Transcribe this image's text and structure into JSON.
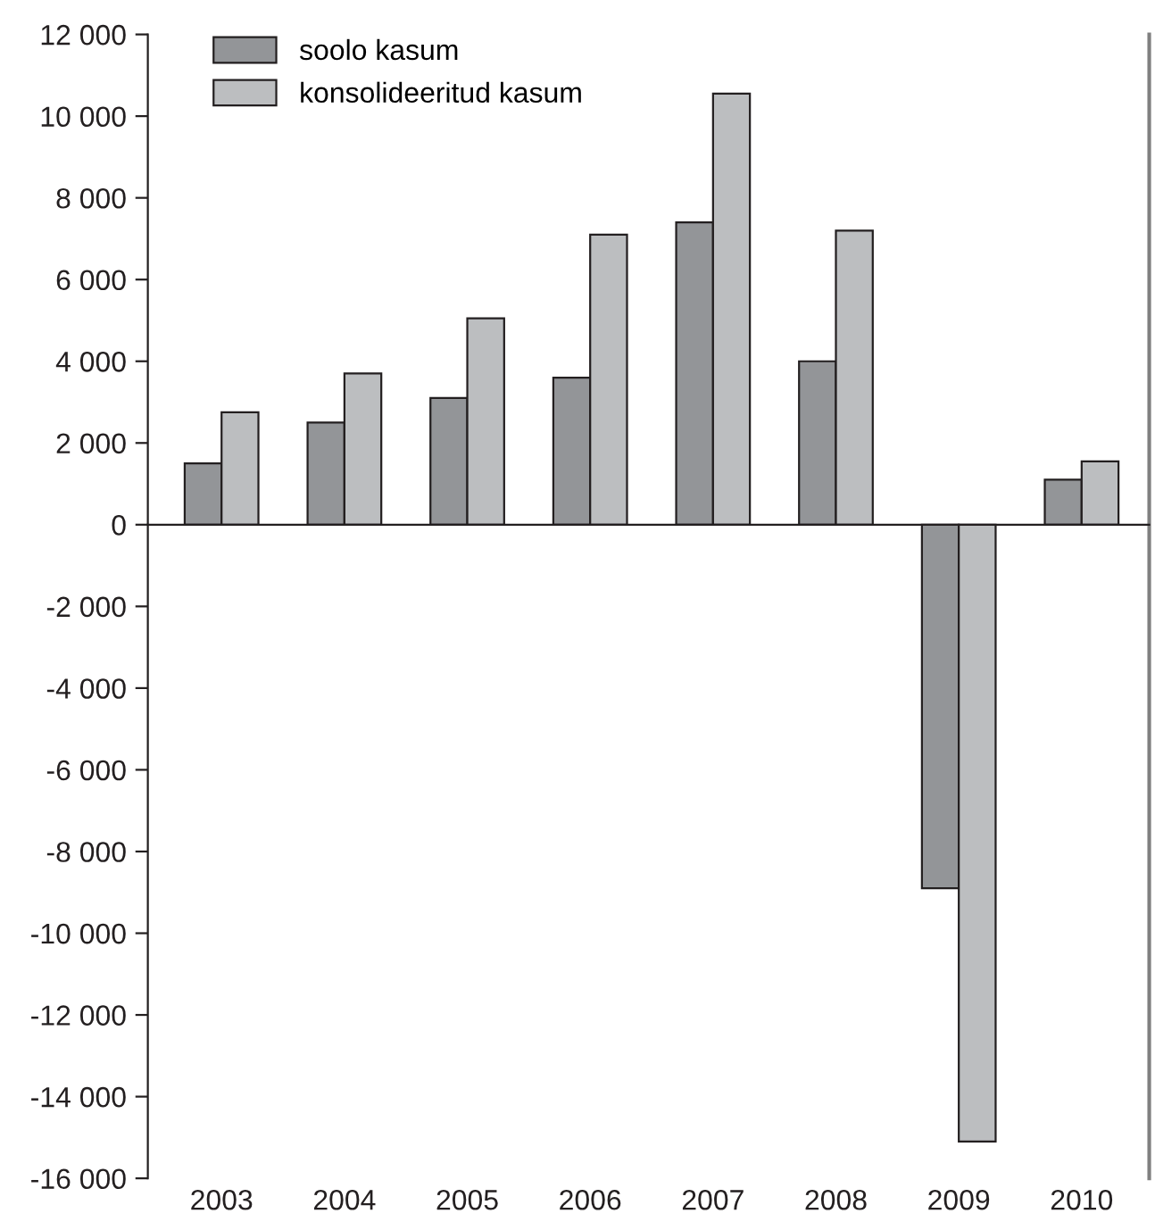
{
  "chart_data": {
    "type": "bar",
    "categories": [
      "2003",
      "2004",
      "2005",
      "2006",
      "2007",
      "2008",
      "2009",
      "2010"
    ],
    "series": [
      {
        "name": "soolo kasum",
        "color": "#939598",
        "values": [
          1500,
          2500,
          3100,
          3600,
          7400,
          4000,
          -8900,
          1100
        ]
      },
      {
        "name": "konsolideeritud kasum",
        "color": "#bcbec0",
        "values": [
          2750,
          3700,
          5050,
          7100,
          10550,
          7200,
          -15100,
          1550
        ]
      }
    ],
    "ylim": [
      -16000,
      12000
    ],
    "yticks": [
      {
        "value": -16000,
        "label": "-16 000"
      },
      {
        "value": -14000,
        "label": "-14 000"
      },
      {
        "value": -12000,
        "label": "-12 000"
      },
      {
        "value": -10000,
        "label": "-10 000"
      },
      {
        "value": -8000,
        "label": "-8 000"
      },
      {
        "value": -6000,
        "label": "-6 000"
      },
      {
        "value": -4000,
        "label": "-4 000"
      },
      {
        "value": -2000,
        "label": "-2 000"
      },
      0,
      {
        "value": 2000,
        "label": "2 000"
      },
      {
        "value": 4000,
        "label": "4 000"
      },
      {
        "value": 6000,
        "label": "6 000"
      },
      {
        "value": 8000,
        "label": "8 000"
      },
      {
        "value": 10000,
        "label": "10 000"
      },
      {
        "value": 12000,
        "label": "12 000"
      }
    ],
    "legend": "top left"
  }
}
